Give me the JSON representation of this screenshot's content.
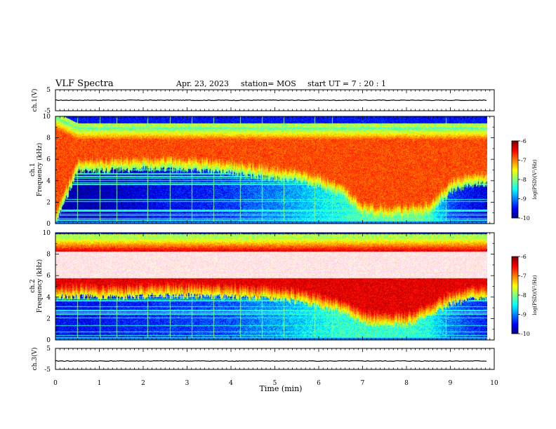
{
  "header": {
    "title": "VLF Spectra",
    "date": "Apr. 23, 2023",
    "station": "station= MOS",
    "start_ut": "start UT =   7 : 20 : 1"
  },
  "chart_data": [
    {
      "type": "line",
      "panel": "ch1-waveform",
      "ylabel": "ch.1(V)",
      "ylim": [
        -5,
        5
      ],
      "yticks": [
        "5",
        "-5"
      ],
      "xlim": [
        0,
        10
      ],
      "x": [
        0,
        1,
        2,
        3,
        4,
        5,
        6,
        7,
        8,
        9,
        9.83
      ],
      "y": [
        0,
        0,
        0,
        0,
        0,
        0,
        0,
        0,
        0,
        0,
        0
      ]
    },
    {
      "type": "heatmap",
      "panel": "ch1-spectrogram",
      "ylabel": "ch.1\nFrequency (kHz)",
      "ylim": [
        0,
        10
      ],
      "yticks": [
        "0",
        "2",
        "4",
        "6",
        "8",
        "10"
      ],
      "xlim": [
        0,
        10
      ],
      "colorbar": {
        "range": [
          -10,
          -6
        ],
        "ticks": [
          "-6",
          "-7",
          "-8",
          "-9",
          "-10"
        ],
        "label": "log(PSD)(V²/Hz)"
      },
      "time_min": [
        0,
        0.5,
        1,
        1.5,
        2,
        2.5,
        3,
        3.5,
        4,
        4.5,
        5,
        5.5,
        6,
        6.5,
        7,
        7.5,
        8,
        8.5,
        9,
        9.5,
        9.83
      ],
      "band_low_kHz": [
        0,
        4.9,
        4.9,
        5.0,
        5.1,
        5.1,
        5.0,
        4.9,
        4.7,
        4.4,
        4.2,
        4.0,
        3.4,
        2.6,
        0.8,
        0.5,
        0.6,
        0.8,
        3.0,
        3.6,
        3.8
      ],
      "band_high_kHz": [
        10,
        9.0,
        9.0,
        9.0,
        9.0,
        9.0,
        9.0,
        9.0,
        9.0,
        9.0,
        9.0,
        9.0,
        9.0,
        9.0,
        9.0,
        9.0,
        9.0,
        9.0,
        9.0,
        9.0,
        9.0
      ],
      "hiss_log_psd": [
        -9.8,
        -9.8,
        -9.8,
        -9.7,
        -9.6,
        -9.5,
        -9.5,
        -9.4,
        -9.3,
        -9.1,
        -9.0,
        -8.8,
        -8.6,
        -8.4,
        -8.2,
        -8.1,
        -8.1,
        -8.2,
        -9.2,
        -9.5,
        -9.6
      ],
      "band_log_psd": -6.8,
      "spheric_times_min": [
        0.5,
        1.0,
        1.4,
        2.1,
        2.6,
        3.1,
        3.6,
        4.2,
        4.7,
        5.2,
        5.9,
        6.3,
        8.9
      ]
    },
    {
      "type": "heatmap",
      "panel": "ch2-spectrogram",
      "ylabel": "ch.2\nFrequency (kHz)",
      "ylim": [
        0,
        10
      ],
      "yticks": [
        "0",
        "2",
        "4",
        "6",
        "8",
        "10"
      ],
      "xlim": [
        0,
        10
      ],
      "colorbar": {
        "range": [
          -10,
          -6
        ],
        "ticks": [
          "-6",
          "-7",
          "-8",
          "-9",
          "-10"
        ],
        "label": "log(PSD)(V²/Hz)"
      },
      "time_min": [
        0,
        0.5,
        1,
        1.5,
        2,
        2.5,
        3,
        3.5,
        4,
        4.5,
        5,
        5.5,
        6,
        6.5,
        7,
        7.5,
        8,
        8.5,
        9,
        9.5,
        9.83
      ],
      "band_low_kHz": [
        4.0,
        4.0,
        4.0,
        4.0,
        4.1,
        4.1,
        4.1,
        4.0,
        4.0,
        3.9,
        3.8,
        3.6,
        3.2,
        2.6,
        1.6,
        1.4,
        1.4,
        2.2,
        3.4,
        3.8,
        3.9
      ],
      "band_high_kHz": [
        9.5,
        9.5,
        9.5,
        9.5,
        9.5,
        9.5,
        9.5,
        9.5,
        9.5,
        9.5,
        9.5,
        9.5,
        9.5,
        9.5,
        9.5,
        9.5,
        9.5,
        9.5,
        9.5,
        9.5,
        9.5
      ],
      "core_low_kHz": 5.8,
      "core_high_kHz": 8.3,
      "hiss_log_psd": [
        -9.5,
        -9.5,
        -9.5,
        -9.4,
        -9.4,
        -9.3,
        -9.3,
        -9.2,
        -9.2,
        -9.0,
        -8.9,
        -8.7,
        -8.5,
        -8.3,
        -8.3,
        -8.3,
        -8.3,
        -8.4,
        -9.0,
        -9.3,
        -9.4
      ],
      "band_log_psd": -6.4,
      "spheric_times_min": [
        0.5,
        1.0,
        1.4,
        2.1,
        2.6,
        3.1,
        3.6,
        4.2,
        4.7,
        5.2,
        5.9,
        6.3,
        8.9
      ]
    },
    {
      "type": "line",
      "panel": "ch3-waveform",
      "ylabel": "ch.3(V)",
      "ylim": [
        -5,
        5
      ],
      "yticks": [
        "5",
        "-5"
      ],
      "xlim": [
        0,
        10
      ],
      "xlabel": "Time (min)",
      "xticks": [
        "0",
        "1",
        "2",
        "3",
        "4",
        "5",
        "6",
        "7",
        "8",
        "9",
        "10"
      ],
      "x": [
        0,
        1,
        2,
        3,
        4,
        5,
        6,
        7,
        8,
        9,
        9.83
      ],
      "y": [
        -1,
        -1,
        -1,
        -1,
        -1,
        -1,
        -1,
        -1,
        -1,
        -1,
        -1
      ]
    }
  ]
}
